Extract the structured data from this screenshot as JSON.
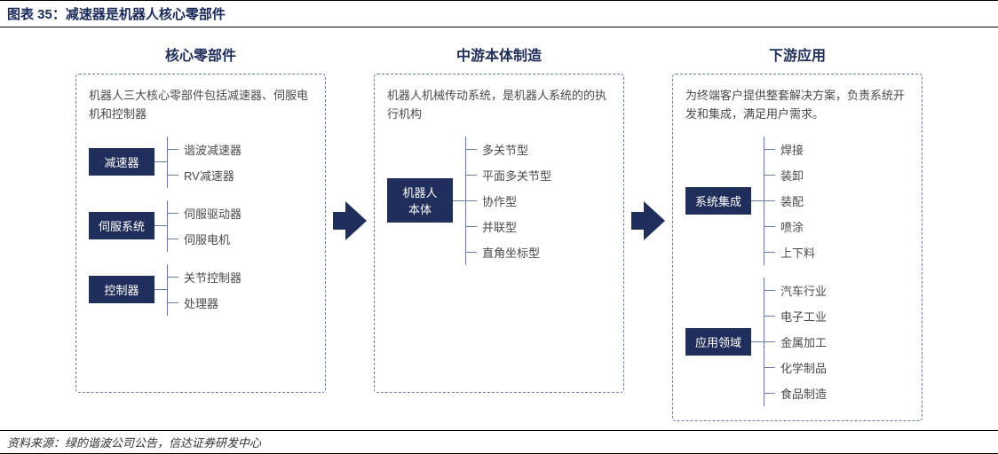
{
  "title": "图表 35：减速器是机器人核心零部件",
  "source": "资料来源：绿的谐波公司公告，信达证券研发中心",
  "colors": {
    "navy": "#1f2e5a",
    "header_text": "#1f2e5a",
    "dashed_border": "#6a7aa8",
    "bracket": "#6a7aa8",
    "desc_text": "#4a4a4a",
    "item_text": "#4a4a4a",
    "arrow_fill": "#1f2e5a"
  },
  "columns": [
    {
      "header": "核心零部件",
      "desc": "机器人三大核心零部件包括减速器、伺服电机和控制器",
      "groups": [
        {
          "tag": "减速器",
          "items": [
            "谐波减速器",
            "RV减速器"
          ]
        },
        {
          "tag": "伺服系统",
          "items": [
            "伺服驱动器",
            "伺服电机"
          ]
        },
        {
          "tag": "控制器",
          "items": [
            "关节控制器",
            "处理器"
          ]
        }
      ]
    },
    {
      "header": "中游本体制造",
      "desc": "机器人机械传动系统，是机器人系统的的执行机构",
      "groups": [
        {
          "tag": "机器人\n本体",
          "items": [
            "多关节型",
            "平面多关节型",
            "协作型",
            "并联型",
            "直角坐标型"
          ]
        }
      ]
    },
    {
      "header": "下游应用",
      "desc": "为终端客户提供整套解决方案，负责系统开发和集成，满足用户需求。",
      "groups": [
        {
          "tag": "系统集成",
          "items": [
            "焊接",
            "装卸",
            "装配",
            "喷涂",
            "上下料"
          ]
        },
        {
          "tag": "应用领域",
          "items": [
            "汽车行业",
            "电子工业",
            "金属加工",
            "化学制品",
            "食品制造"
          ]
        }
      ]
    }
  ]
}
